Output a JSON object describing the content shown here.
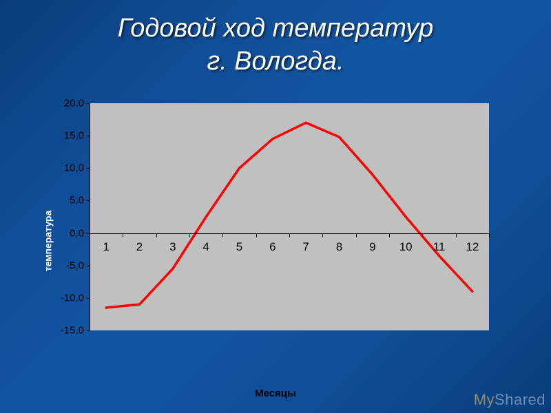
{
  "title_line1": "Годовой ход температур",
  "title_line2": "г. Вологда.",
  "watermark_my": "My",
  "watermark_shared": "Shared",
  "chart": {
    "type": "line",
    "ylabel": "температура",
    "xlabel": "Месяцы",
    "background_color": "#c0c0c0",
    "line_color": "#ff0000",
    "line_width": 3.5,
    "axis_color": "#000000",
    "tick_font_size": 15,
    "xlim": [
      0.5,
      12.5
    ],
    "ylim": [
      -15.0,
      20.0
    ],
    "yticks": [
      20.0,
      15.0,
      10.0,
      5.0,
      0.0,
      -5.0,
      -10.0,
      -15.0
    ],
    "ytick_labels": [
      "20,0",
      "15,0",
      "10,0",
      "5,0",
      "0,0",
      "-5,0",
      "-10,0",
      "-15,0"
    ],
    "xticks": [
      1,
      2,
      3,
      4,
      5,
      6,
      7,
      8,
      9,
      10,
      11,
      12
    ],
    "xtick_labels": [
      "1",
      "2",
      "3",
      "4",
      "5",
      "6",
      "7",
      "8",
      "9",
      "10",
      "11",
      "12"
    ],
    "values": [
      -11.5,
      -11.0,
      -5.5,
      2.5,
      10.0,
      14.5,
      17.0,
      14.8,
      9.0,
      2.5,
      -3.5,
      -9.0
    ]
  }
}
